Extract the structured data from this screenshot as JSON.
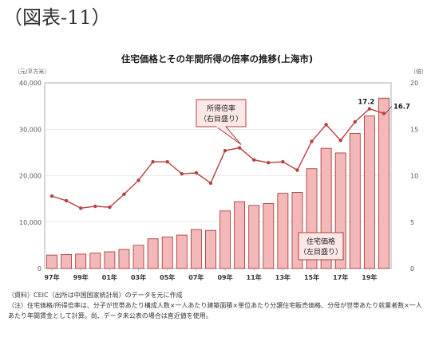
{
  "figure_label": "（図表-11）",
  "notes": [
    "（資料）CEIC（出所は中国国家統計局）のデータを元に作成",
    "（注）住宅価格/所得倍率は、分子が世帯あたり構成人数×一人あたり建築面積×単位あたり分譲住宅販売価格、分母が世帯あたり就業者数×一人あたり年間賃金として計算。尚、データ未公表の場合は直近値を使用。"
  ],
  "chart_data": {
    "type": "bar+line",
    "title": "住宅価格とその年間所得の倍率の推移(上海市)",
    "left_axis": {
      "unit": "（元/平方米）",
      "ylim": [
        0,
        40000
      ],
      "ticks": [
        "0",
        "10,000",
        "20,000",
        "30,000",
        "40,000"
      ]
    },
    "right_axis": {
      "unit": "（倍）",
      "ylim": [
        0,
        20
      ],
      "ticks": [
        "0",
        "5",
        "10",
        "15",
        "20"
      ]
    },
    "x_ticks": [
      "97年",
      "99年",
      "01年",
      "03年",
      "05年",
      "07年",
      "09年",
      "11年",
      "13年",
      "15年",
      "17年",
      "19年"
    ],
    "categories": [
      "97",
      "98",
      "99",
      "00",
      "01",
      "02",
      "03",
      "04",
      "05",
      "06",
      "07",
      "08",
      "09",
      "10",
      "11",
      "12",
      "13",
      "14",
      "15",
      "16",
      "17",
      "18",
      "19",
      "20"
    ],
    "series": [
      {
        "name": "住宅価格",
        "axis": "left",
        "type": "bar",
        "color": "#f4b8b8",
        "stroke": "#a0302f",
        "values": [
          2900,
          3000,
          3100,
          3300,
          3600,
          4100,
          5000,
          6400,
          6800,
          7200,
          8400,
          8200,
          12400,
          14400,
          13600,
          14000,
          16200,
          16400,
          21500,
          25900,
          24900,
          29100,
          32900,
          36700
        ]
      },
      {
        "name": "所得倍率",
        "axis": "right",
        "type": "line",
        "color": "#b8403e",
        "values": [
          7.8,
          7.3,
          6.5,
          6.7,
          6.6,
          8.0,
          9.5,
          11.5,
          11.5,
          10.2,
          10.3,
          9.2,
          12.7,
          13.0,
          11.7,
          11.4,
          11.5,
          10.6,
          13.7,
          15.5,
          13.8,
          15.8,
          17.2,
          16.7
        ]
      }
    ],
    "annotations": {
      "line_label": [
        "所得倍率",
        "（右目盛り）"
      ],
      "bar_label": [
        "住宅価格",
        "（左目盛り）"
      ],
      "point_labels": [
        "17.2",
        "16.7"
      ]
    }
  }
}
